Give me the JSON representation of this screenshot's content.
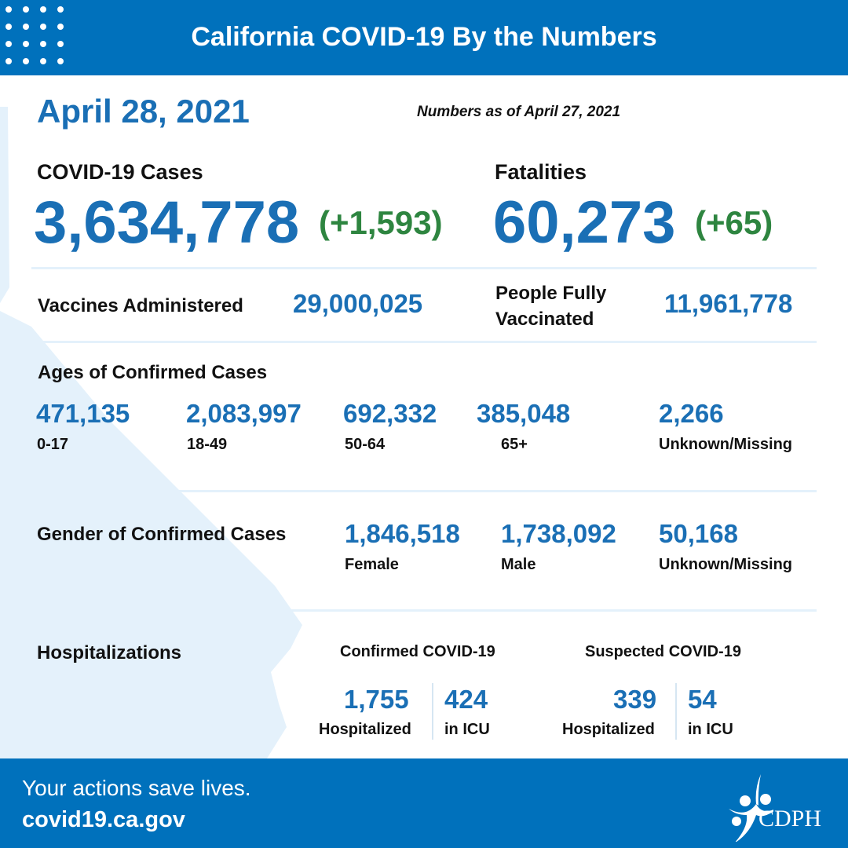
{
  "header": {
    "title": "California COVID-19 By the Numbers"
  },
  "date": "April 28, 2021",
  "as_of": "Numbers as of April 27, 2021",
  "cases": {
    "label": "COVID-19 Cases",
    "value": "3,634,778",
    "change": "(+1,593)"
  },
  "fatalities": {
    "label": "Fatalities",
    "value": "60,273",
    "change": "(+65)"
  },
  "vaccines": {
    "label": "Vaccines Administered",
    "value": "29,000,025"
  },
  "fully": {
    "label1": "People Fully",
    "label2": "Vaccinated",
    "value": "11,961,778"
  },
  "ages": {
    "label": "Ages of Confirmed Cases",
    "items": [
      {
        "v": "471,135",
        "l": "0-17"
      },
      {
        "v": "2,083,997",
        "l": "18-49"
      },
      {
        "v": "692,332",
        "l": "50-64"
      },
      {
        "v": "385,048",
        "l": "65+"
      },
      {
        "v": "2,266",
        "l": "Unknown/Missing"
      }
    ]
  },
  "gender": {
    "label": "Gender of Confirmed Cases",
    "items": [
      {
        "v": "1,846,518",
        "l": "Female"
      },
      {
        "v": "1,738,092",
        "l": "Male"
      },
      {
        "v": "50,168",
        "l": "Unknown/Missing"
      }
    ]
  },
  "hosp": {
    "label": "Hospitalizations",
    "confirmed": {
      "title": "Confirmed COVID-19",
      "hosp": "1,755",
      "hosp_l": "Hospitalized",
      "icu": "424",
      "icu_l": "in ICU"
    },
    "suspected": {
      "title": "Suspected COVID-19",
      "hosp": "339",
      "hosp_l": "Hospitalized",
      "icu": "54",
      "icu_l": "in ICU"
    }
  },
  "footer": {
    "tagline": "Your actions save lives.",
    "url": "covid19.ca.gov",
    "logo_text": "CDPH"
  },
  "colors": {
    "brand": "#0071bc",
    "number": "#1a6fb5",
    "change": "#2e8540",
    "map": "#e4f1fb"
  }
}
